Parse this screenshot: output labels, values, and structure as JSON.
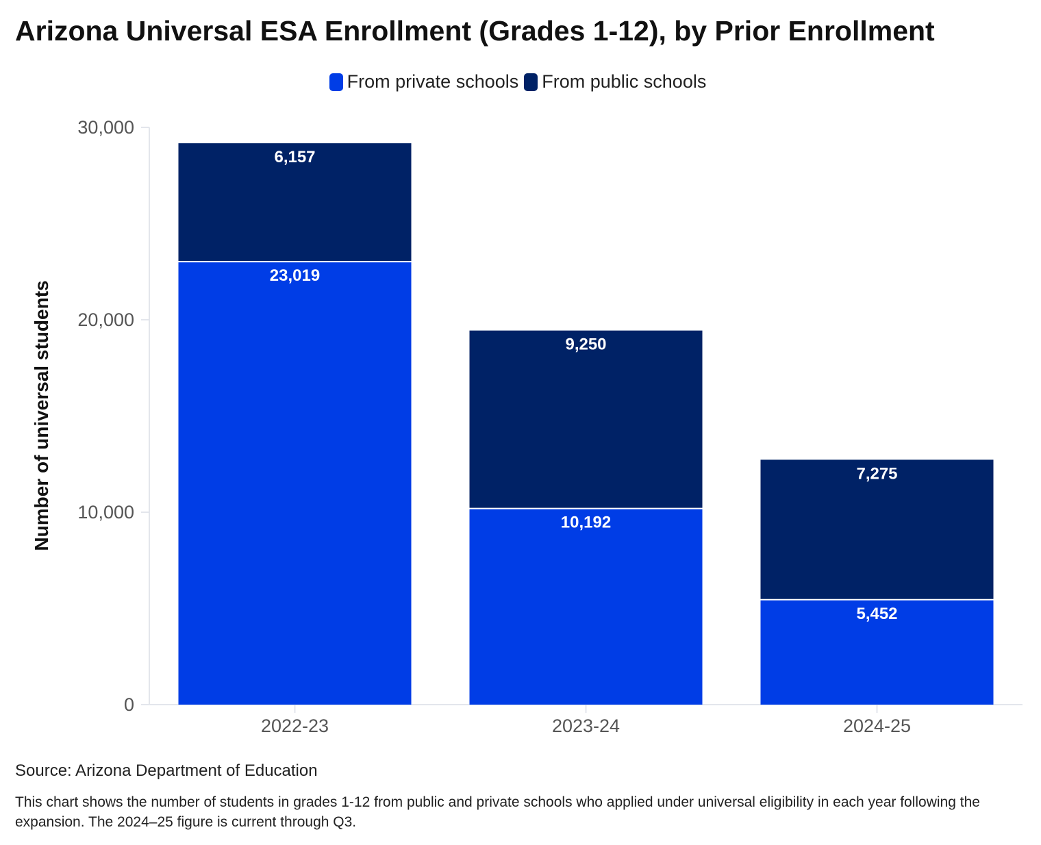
{
  "chart_data": {
    "type": "bar",
    "stacked": true,
    "title": "Arizona Universal ESA Enrollment (Grades 1-12), by Prior Enrollment",
    "ylabel": "Number of universal students",
    "xlabel": "",
    "categories": [
      "2022-23",
      "2023-24",
      "2024-25"
    ],
    "series": [
      {
        "name": "From private schools",
        "values": [
          23019,
          10192,
          5452
        ],
        "labels": [
          "23,019",
          "10,192",
          "5,452"
        ],
        "color": "#003de6"
      },
      {
        "name": "From public schools",
        "values": [
          6157,
          9250,
          7275
        ],
        "labels": [
          "6,157",
          "9,250",
          "7,275"
        ],
        "color": "#002266"
      }
    ],
    "ylim": [
      0,
      30000
    ],
    "yticks": [
      0,
      10000,
      20000,
      30000
    ],
    "ytick_labels": [
      "0",
      "10,000",
      "20,000",
      "30,000"
    ],
    "legend": "top-center",
    "grid": false
  },
  "source": "Source: Arizona Department of Education",
  "note": "This chart shows the number of students in grades 1-12 from public and private schools who applied under universal eligibility in each year following the expansion. The 2024–25 figure is current through Q3."
}
